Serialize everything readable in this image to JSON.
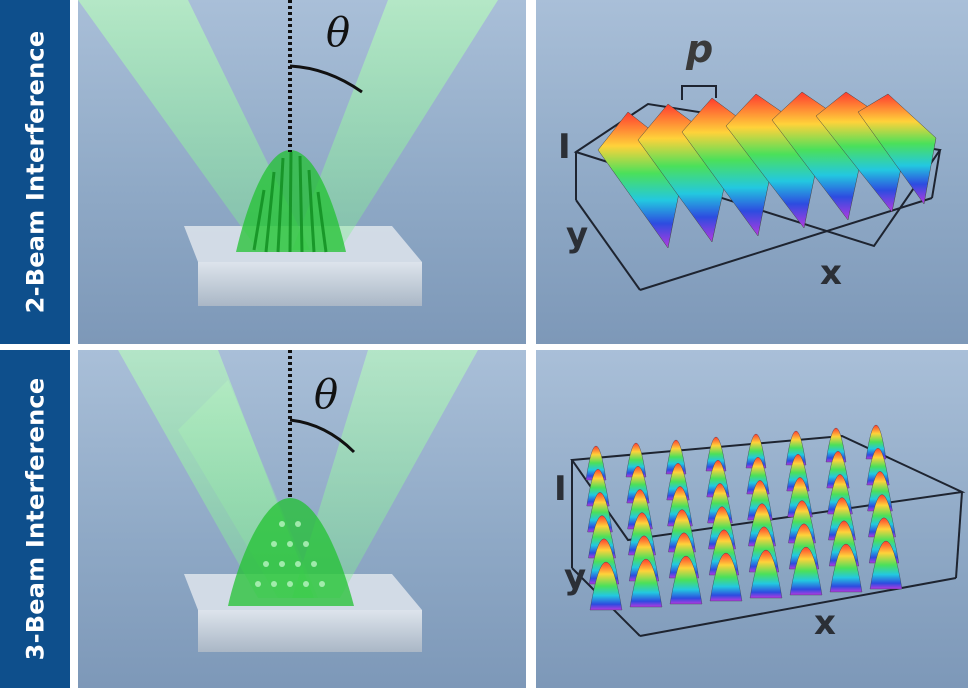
{
  "rows": [
    {
      "label": "2-Beam Interference",
      "angle_symbol": "θ",
      "axis_labels": {
        "period": "p",
        "intensity": "I",
        "y": "y",
        "x": "x"
      }
    },
    {
      "label": "3-Beam Interference",
      "angle_symbol": "θ",
      "axis_labels": {
        "intensity": "I",
        "y": "y",
        "x": "x"
      }
    }
  ],
  "colors": {
    "label_background": "#0e4f8c",
    "label_text": "#ffffff",
    "laser_beam": "#7cf08a",
    "interference_pattern": "#22c232",
    "substrate": "#c9d3de"
  }
}
